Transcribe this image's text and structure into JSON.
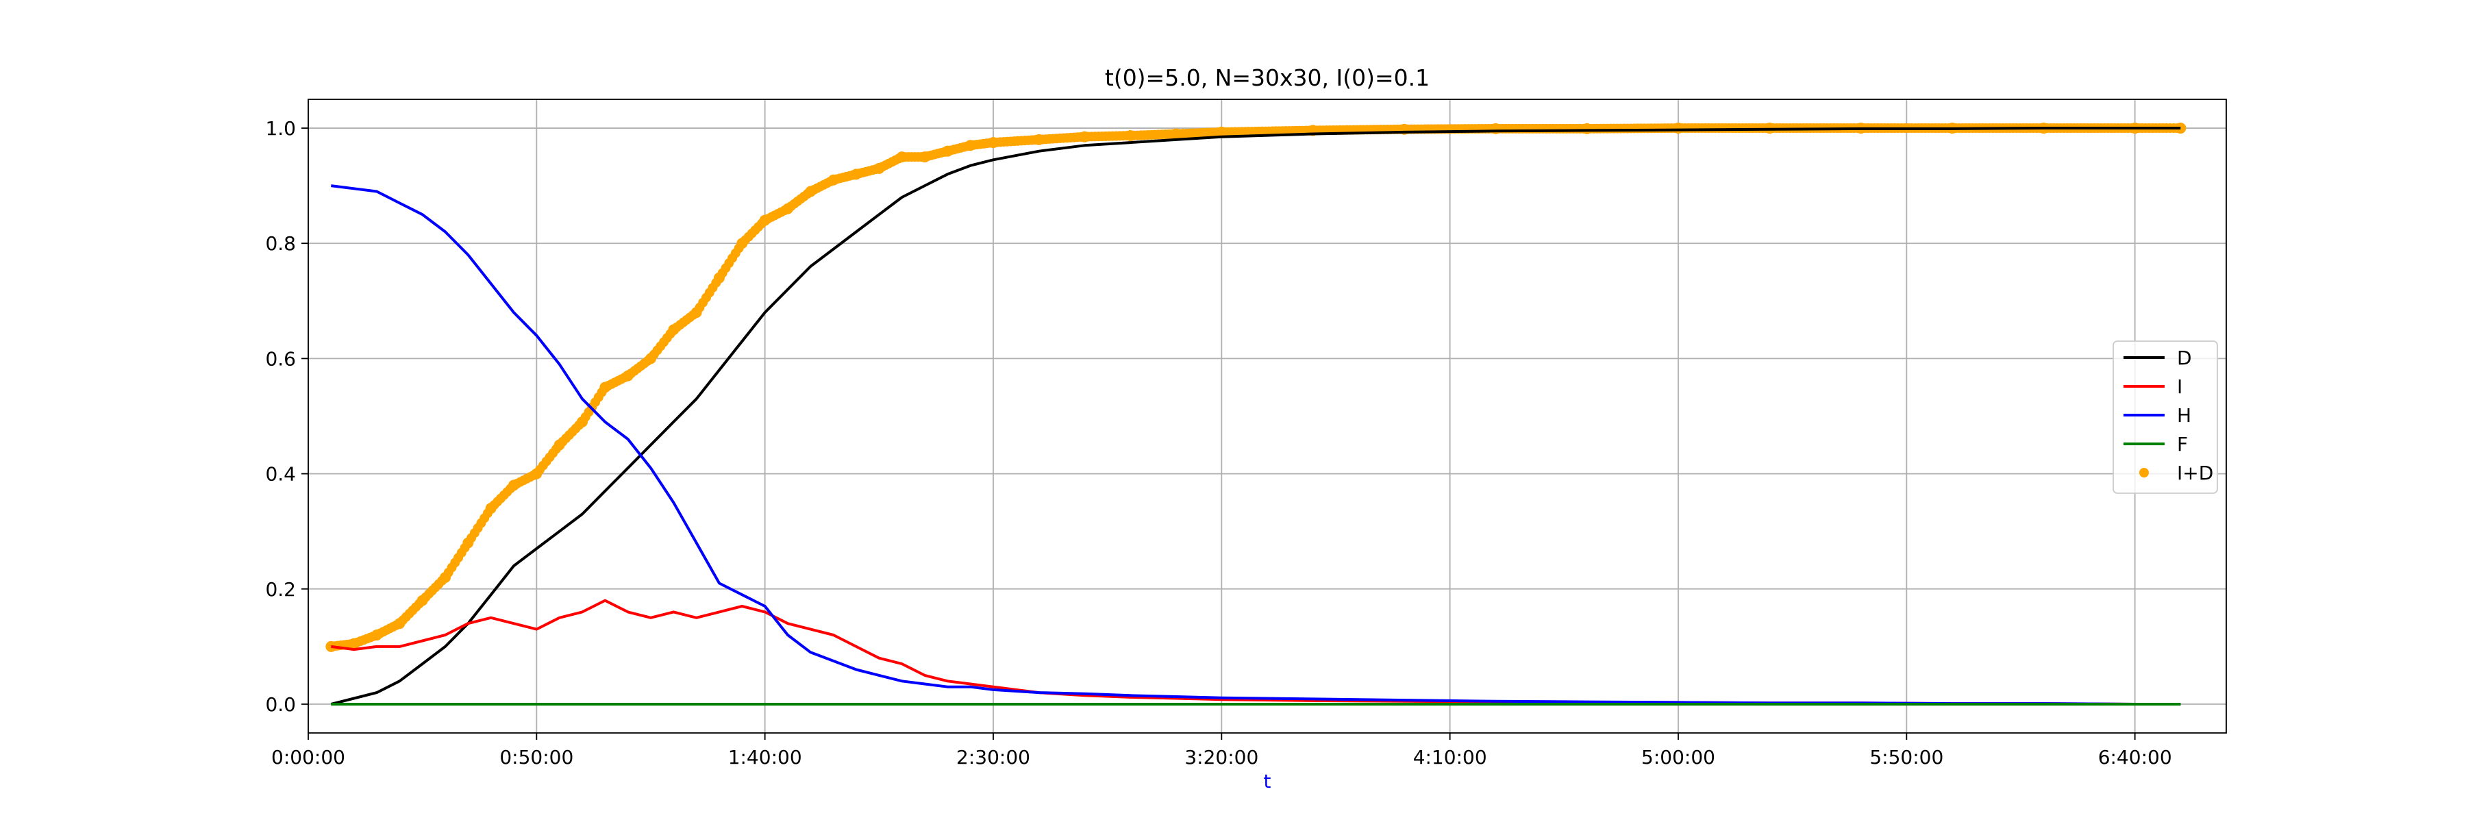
{
  "chart_data": {
    "type": "line",
    "title": "t(0)=5.0, N=30x30, I(0)=0.1",
    "xlabel": "t",
    "ylabel": "",
    "x_unit": "seconds",
    "xlim": [
      0,
      25200
    ],
    "ylim": [
      -0.05,
      1.05
    ],
    "xticks": [
      0,
      3000,
      6000,
      9000,
      12000,
      15000,
      18000,
      21000,
      24000
    ],
    "xtick_labels": [
      "0:00:00",
      "0:50:00",
      "1:40:00",
      "2:30:00",
      "3:20:00",
      "4:10:00",
      "5:00:00",
      "5:50:00",
      "6:40:00"
    ],
    "yticks": [
      0.0,
      0.2,
      0.4,
      0.6,
      0.8,
      1.0
    ],
    "ytick_labels": [
      "0.0",
      "0.2",
      "0.4",
      "0.6",
      "0.8",
      "1.0"
    ],
    "grid": true,
    "legend_position": "center-right",
    "x": [
      300,
      600,
      900,
      1200,
      1500,
      1800,
      2100,
      2400,
      2700,
      3000,
      3300,
      3600,
      3900,
      4200,
      4500,
      4800,
      5100,
      5400,
      5700,
      6000,
      6300,
      6600,
      6900,
      7200,
      7500,
      7800,
      8100,
      8400,
      8700,
      9000,
      9600,
      10200,
      10800,
      11400,
      12000,
      13200,
      14400,
      15600,
      16800,
      18000,
      19200,
      20400,
      21600,
      22800,
      24000,
      24600
    ],
    "series": [
      {
        "name": "D",
        "color": "#000000",
        "style": "line",
        "values": [
          0.0,
          0.01,
          0.02,
          0.04,
          0.07,
          0.1,
          0.14,
          0.19,
          0.24,
          0.27,
          0.3,
          0.33,
          0.37,
          0.41,
          0.45,
          0.49,
          0.53,
          0.58,
          0.63,
          0.68,
          0.72,
          0.76,
          0.79,
          0.82,
          0.85,
          0.88,
          0.9,
          0.92,
          0.935,
          0.945,
          0.96,
          0.97,
          0.975,
          0.98,
          0.985,
          0.99,
          0.993,
          0.995,
          0.996,
          0.997,
          0.998,
          0.999,
          0.999,
          1.0,
          1.0,
          1.0
        ]
      },
      {
        "name": "I",
        "color": "#ff0000",
        "style": "line",
        "values": [
          0.1,
          0.095,
          0.1,
          0.1,
          0.11,
          0.12,
          0.14,
          0.15,
          0.14,
          0.13,
          0.15,
          0.16,
          0.18,
          0.16,
          0.15,
          0.16,
          0.15,
          0.16,
          0.17,
          0.16,
          0.14,
          0.13,
          0.12,
          0.1,
          0.08,
          0.07,
          0.05,
          0.04,
          0.035,
          0.03,
          0.02,
          0.015,
          0.012,
          0.01,
          0.008,
          0.006,
          0.005,
          0.004,
          0.003,
          0.003,
          0.002,
          0.002,
          0.001,
          0.001,
          0.0,
          0.0
        ]
      },
      {
        "name": "H",
        "color": "#0000ff",
        "style": "line",
        "values": [
          0.9,
          0.895,
          0.89,
          0.87,
          0.85,
          0.82,
          0.78,
          0.73,
          0.68,
          0.64,
          0.59,
          0.53,
          0.49,
          0.46,
          0.41,
          0.35,
          0.28,
          0.21,
          0.19,
          0.17,
          0.12,
          0.09,
          0.075,
          0.06,
          0.05,
          0.04,
          0.035,
          0.03,
          0.03,
          0.025,
          0.02,
          0.018,
          0.015,
          0.013,
          0.011,
          0.009,
          0.007,
          0.005,
          0.004,
          0.003,
          0.002,
          0.002,
          0.001,
          0.001,
          0.0,
          0.0
        ]
      },
      {
        "name": "F",
        "color": "#008000",
        "style": "line",
        "values": [
          0.0,
          0.0,
          0.0,
          0.0,
          0.0,
          0.0,
          0.0,
          0.0,
          0.0,
          0.0,
          0.0,
          0.0,
          0.0,
          0.0,
          0.0,
          0.0,
          0.0,
          0.0,
          0.0,
          0.0,
          0.0,
          0.0,
          0.0,
          0.0,
          0.0,
          0.0,
          0.0,
          0.0,
          0.0,
          0.0,
          0.0,
          0.0,
          0.0,
          0.0,
          0.0,
          0.0,
          0.0,
          0.0,
          0.0,
          0.0,
          0.0,
          0.0,
          0.0,
          0.0,
          0.0,
          0.0
        ]
      },
      {
        "name": "I+D",
        "color": "#ffa500",
        "style": "points",
        "values": [
          0.1,
          0.105,
          0.12,
          0.14,
          0.18,
          0.22,
          0.28,
          0.34,
          0.38,
          0.4,
          0.45,
          0.49,
          0.55,
          0.57,
          0.6,
          0.65,
          0.68,
          0.74,
          0.8,
          0.84,
          0.86,
          0.89,
          0.91,
          0.92,
          0.93,
          0.95,
          0.95,
          0.96,
          0.97,
          0.975,
          0.98,
          0.985,
          0.987,
          0.99,
          0.993,
          0.996,
          0.998,
          0.999,
          0.999,
          1.0,
          1.0,
          1.0,
          1.0,
          1.0,
          1.0,
          1.0
        ]
      }
    ]
  }
}
